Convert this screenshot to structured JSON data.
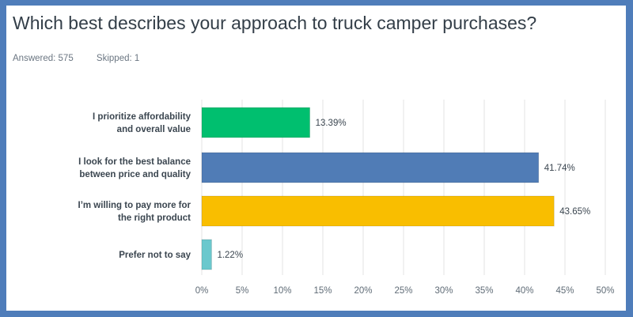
{
  "title": "Which best describes your approach to truck camper purchases?",
  "answered": "Answered: 575",
  "skipped": "Skipped: 1",
  "frame_color": "#4f7dba",
  "chart_data": {
    "type": "bar",
    "orientation": "horizontal",
    "title": "Which best describes your approach to truck camper purchases?",
    "categories": [
      [
        "I prioritize affordability",
        "and overall value"
      ],
      [
        "I look for the best balance",
        "between price and quality"
      ],
      [
        "I’m willing to pay more for",
        "the right product"
      ],
      [
        "Prefer not to say"
      ]
    ],
    "values": [
      13.39,
      41.74,
      43.65,
      1.22
    ],
    "data_labels": [
      "13.39%",
      "41.74%",
      "43.65%",
      "1.22%"
    ],
    "colors": [
      "#00bf6f",
      "#507cb6",
      "#f9be00",
      "#6bc8cd"
    ],
    "xlim": [
      0,
      50
    ],
    "ticks": [
      "0%",
      "5%",
      "10%",
      "15%",
      "20%",
      "25%",
      "30%",
      "35%",
      "40%",
      "45%",
      "50%"
    ],
    "grid": true,
    "legend": "none"
  }
}
